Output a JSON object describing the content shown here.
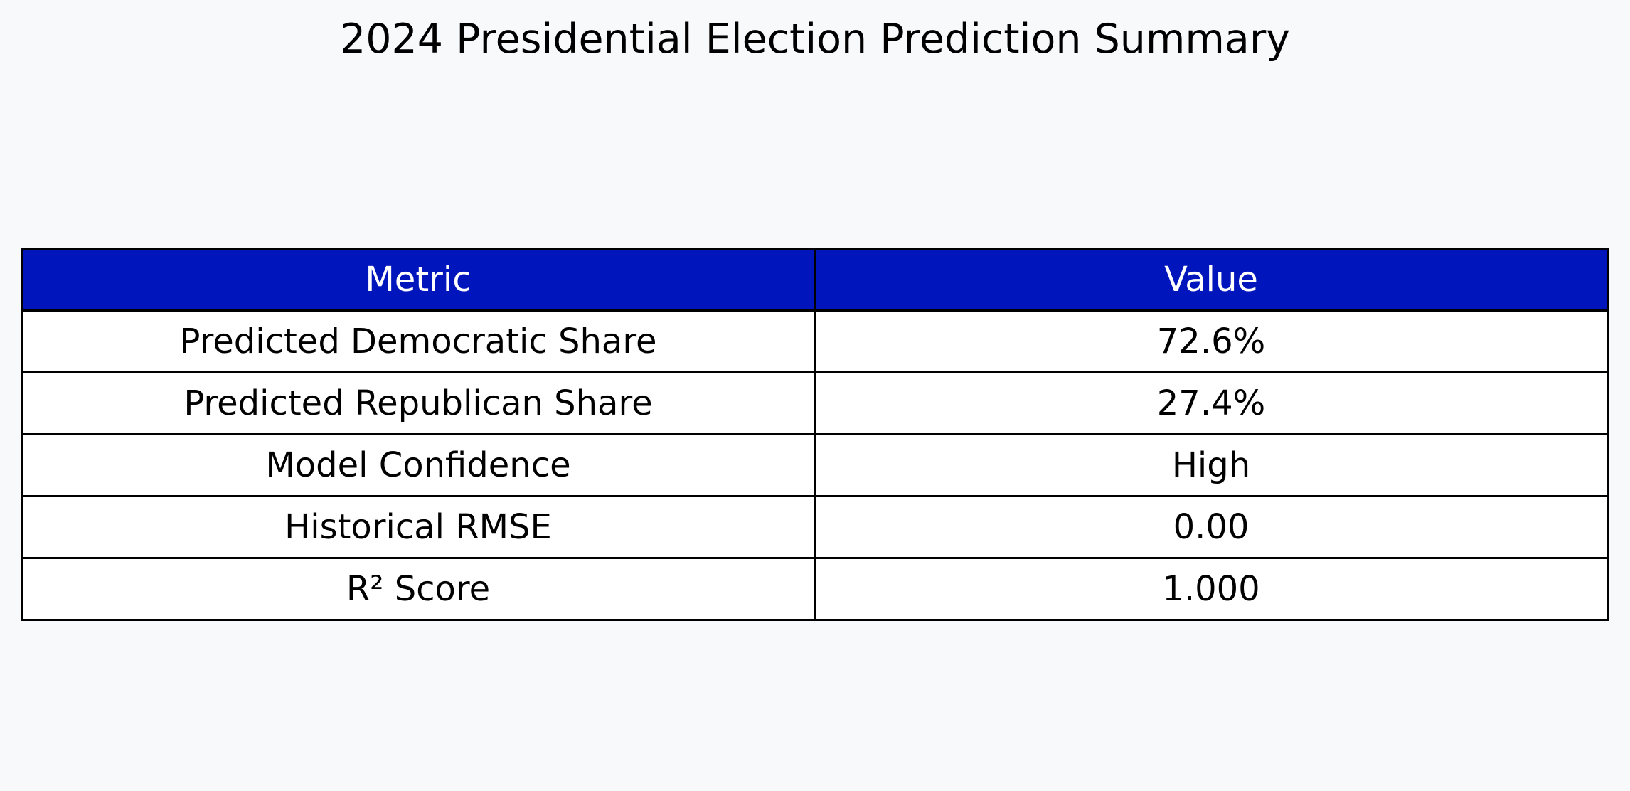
{
  "chart_data": {
    "type": "table",
    "title": "2024 Presidential Election Prediction Summary",
    "columns": [
      "Metric",
      "Value"
    ],
    "rows": [
      [
        "Predicted Democratic Share",
        "72.6%"
      ],
      [
        "Predicted Republican Share",
        "27.4%"
      ],
      [
        "Model Confidence",
        "High"
      ],
      [
        "Historical RMSE",
        "0.00"
      ],
      [
        "R² Score",
        "1.000"
      ]
    ],
    "colors": {
      "header_background": "#0015bc",
      "header_text": "#ffffff",
      "cell_background": "#ffffff",
      "page_background": "#f8f9fa",
      "border": "#000000"
    }
  }
}
